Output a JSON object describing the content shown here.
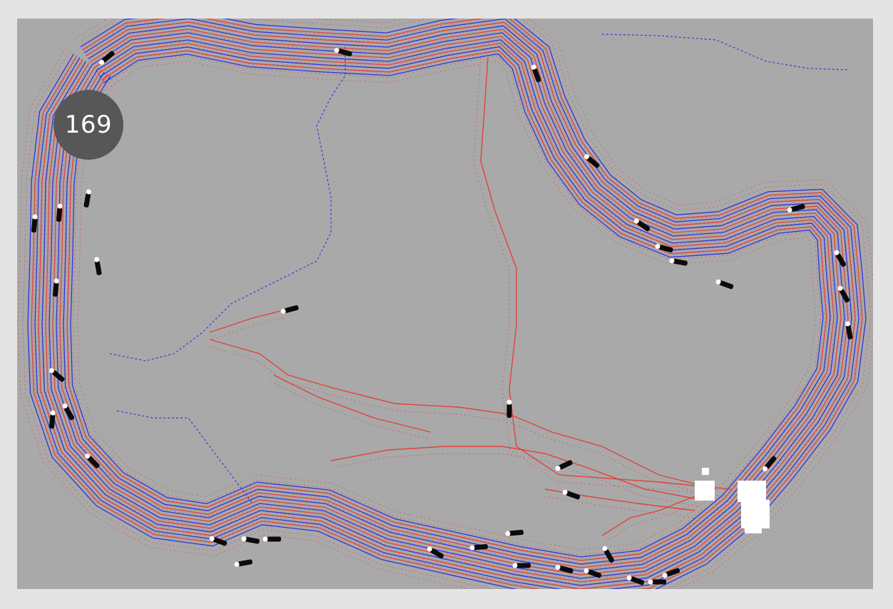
{
  "simulation": {
    "step_counter": "169",
    "colors": {
      "page_background": "#e4e4e4",
      "arena_background": "#a9a9a9",
      "trail_red": "#e8372f",
      "trail_blue": "#2227e6",
      "agent_body": "#0a0a0a",
      "agent_head": "#ffffff",
      "obstacle": "#ffffff",
      "counter_badge": "#575757"
    },
    "icons": [
      "agent-icon",
      "obstacle-block"
    ]
  }
}
